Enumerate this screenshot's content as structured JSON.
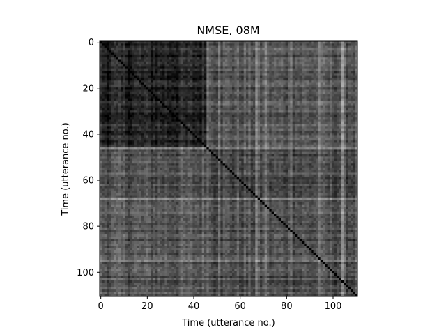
{
  "chart_data": {
    "type": "heatmap",
    "title": "NMSE, 08M",
    "xlabel": "Time (utterance no.)",
    "ylabel": "Time (utterance no.)",
    "n": 111,
    "xlim": [
      0,
      110
    ],
    "ylim": [
      110,
      0
    ],
    "x_ticks": [
      "0",
      "20",
      "40",
      "60",
      "80",
      "100"
    ],
    "y_ticks": [
      "0",
      "20",
      "40",
      "60",
      "80",
      "100"
    ],
    "colormap": "gray",
    "block_boundary": 46,
    "grid": false
  }
}
